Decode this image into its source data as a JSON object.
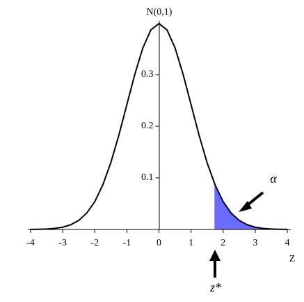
{
  "chart_data": {
    "type": "line",
    "x_label": "Z",
    "y_label": "N(0,1)",
    "annotations": [
      "α",
      "z*"
    ],
    "xlim": [
      -4,
      4
    ],
    "ylim": [
      0,
      0.4
    ],
    "xticks": [
      -4,
      -3,
      -2,
      -1,
      0,
      1,
      2,
      3,
      4
    ],
    "yticks": [
      0.1,
      0.2,
      0.3
    ],
    "series": [
      {
        "color": "#000000",
        "fill": false,
        "x": [
          -4,
          -3.75,
          -3.5,
          -3.25,
          -3,
          -2.75,
          -2.5,
          -2.25,
          -2,
          -1.75,
          -1.5,
          -1.25,
          -1,
          -0.75,
          -0.5,
          -0.25,
          0,
          0.25,
          0.5,
          0.75,
          1,
          1.25,
          1.5,
          1.75,
          2,
          2.25,
          2.5,
          2.75,
          3,
          3.25,
          3.5,
          3.75,
          4
        ],
        "values": [
          0.0001,
          0.0004,
          0.0009,
          0.002,
          0.0044,
          0.0091,
          0.0175,
          0.0317,
          0.054,
          0.0863,
          0.1295,
          0.1826,
          0.242,
          0.3011,
          0.3521,
          0.3867,
          0.3989,
          0.3867,
          0.3521,
          0.3011,
          0.242,
          0.1826,
          0.1295,
          0.0863,
          0.054,
          0.0317,
          0.0175,
          0.0091,
          0.0044,
          0.002,
          0.0009,
          0.0004,
          0.0001
        ]
      },
      {
        "color": "#6b6bff",
        "fill": true,
        "x": [
          1.73,
          2,
          2.25,
          2.5,
          2.75,
          3,
          3.25,
          3.5,
          3.75,
          4
        ],
        "values": [
          0.0893,
          0.054,
          0.0317,
          0.0175,
          0.0091,
          0.0044,
          0.002,
          0.0009,
          0.0004,
          0.0001
        ]
      }
    ]
  }
}
